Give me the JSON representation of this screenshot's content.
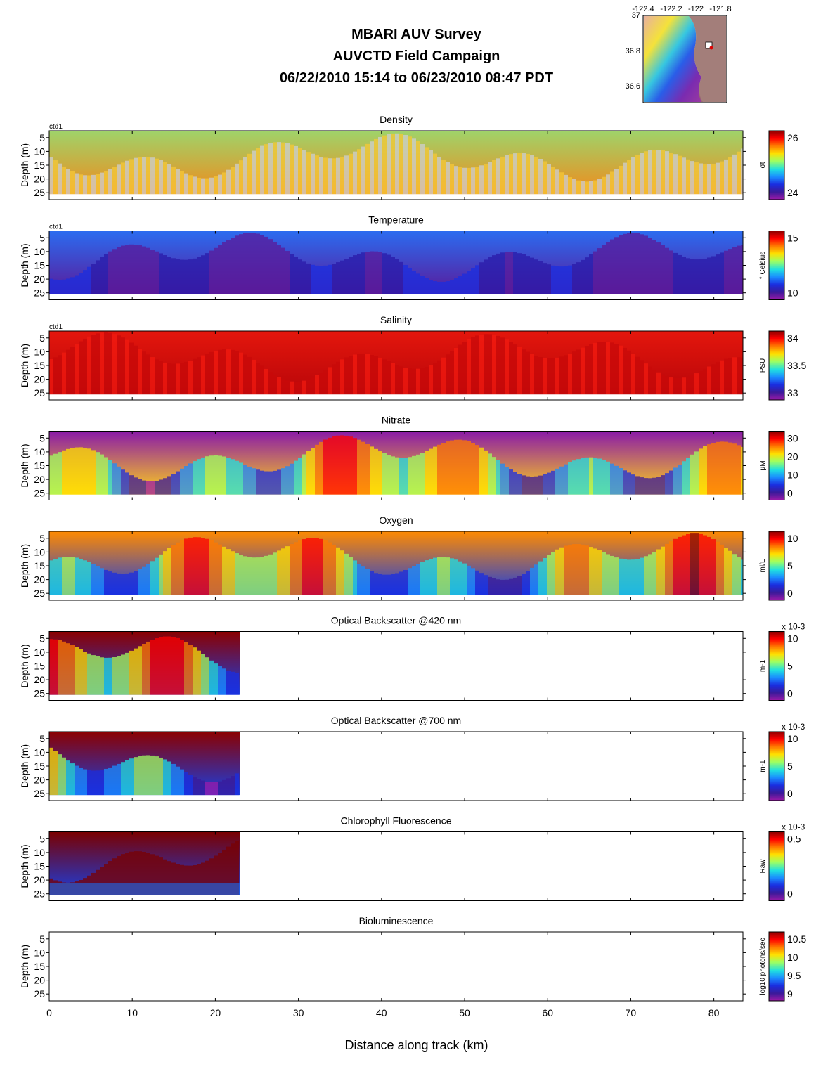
{
  "title": {
    "line1": "MBARI AUV Survey",
    "line2": "AUVCTD Field Campaign",
    "line3": "06/22/2010 15:14  to 06/23/2010 08:47 PDT"
  },
  "minimap": {
    "lon_ticks": [
      "-122.4",
      "-122.2",
      "-122",
      "-121.8"
    ],
    "lat_ticks": [
      "37",
      "36.8",
      "36.6"
    ]
  },
  "x_axis": {
    "label": "Distance along track (km)",
    "ticks": [
      0,
      10,
      20,
      30,
      40,
      50,
      60,
      70,
      80
    ],
    "range": [
      0,
      83.5
    ]
  },
  "depth_axis": {
    "label": "Depth (m)",
    "ticks": [
      5,
      10,
      15,
      20,
      25
    ],
    "range": [
      2.5,
      27.5
    ]
  },
  "chart_data": [
    {
      "type": "heatmap",
      "title": "Density",
      "platform_label": "ctd1",
      "colorbar_label": "σt",
      "colorbar_ticks": [
        "26",
        "24"
      ],
      "data_extent_km": 83.5,
      "pattern": "density",
      "colors": {
        "surface": "#9fd36a",
        "deep": "#f08b1c",
        "gap": "#cfcfcf"
      }
    },
    {
      "type": "heatmap",
      "title": "Temperature",
      "platform_label": "ctd1",
      "colorbar_label": "° Celsius",
      "colorbar_ticks": [
        "15",
        "10"
      ],
      "data_extent_km": 83.5,
      "pattern": "temperature",
      "colors": {
        "surface": "#2b6cf0",
        "deep": "#5a1a9a"
      }
    },
    {
      "type": "heatmap",
      "title": "Salinity",
      "platform_label": "ctd1",
      "colorbar_label": "PSU",
      "colorbar_ticks": [
        "34",
        "33.5",
        "33"
      ],
      "data_extent_km": 83.5,
      "pattern": "salinity",
      "colors": {
        "surface": "#e4160c",
        "deep": "#b8060a"
      }
    },
    {
      "type": "heatmap",
      "title": "Nitrate",
      "platform_label": "",
      "colorbar_label": "μM",
      "colorbar_ticks": [
        "30",
        "20",
        "10",
        "0"
      ],
      "data_extent_km": 83.5,
      "pattern": "nitrate",
      "colors": {
        "surface": "#8a1aa8",
        "deep": "#ffd21a"
      }
    },
    {
      "type": "heatmap",
      "title": "Oxygen",
      "platform_label": "",
      "colorbar_label": "ml/L",
      "colorbar_ticks": [
        "10",
        "5",
        "0"
      ],
      "data_extent_km": 83.5,
      "pattern": "oxygen",
      "colors": {
        "surface": "#ff8a00",
        "deep": "#1a3ee0"
      }
    },
    {
      "type": "heatmap",
      "title": "Optical Backscatter @420 nm",
      "platform_label": "",
      "colorbar_label": "m-1",
      "colorbar_ticks": [
        "10",
        "5",
        "0"
      ],
      "colorbar_exponent": "x 10-3",
      "data_extent_km": 23,
      "pattern": "bb420",
      "colors": {
        "surface": "#8b0000",
        "deep": "#1a3ee0"
      }
    },
    {
      "type": "heatmap",
      "title": "Optical Backscatter @700 nm",
      "platform_label": "",
      "colorbar_label": "m-1",
      "colorbar_ticks": [
        "10",
        "5",
        "0"
      ],
      "colorbar_exponent": "x 10-3",
      "data_extent_km": 23,
      "pattern": "bb700",
      "colors": {
        "surface": "#8b0000",
        "deep": "#1a3ee0"
      }
    },
    {
      "type": "heatmap",
      "title": "Chlorophyll Fluorescence",
      "platform_label": "",
      "colorbar_label": "Raw",
      "colorbar_ticks": [
        "0.5",
        "0"
      ],
      "colorbar_exponent": "x 10-3",
      "data_extent_km": 23,
      "pattern": "chl",
      "colors": {
        "surface": "#7a0000",
        "deep": "#1a3ee0"
      }
    },
    {
      "type": "heatmap",
      "title": "Bioluminescence",
      "platform_label": "",
      "colorbar_label": "log10 photons/sec",
      "colorbar_ticks": [
        "10.5",
        "10",
        "9.5",
        "9"
      ],
      "data_extent_km": 0,
      "pattern": "none",
      "colors": {}
    }
  ]
}
